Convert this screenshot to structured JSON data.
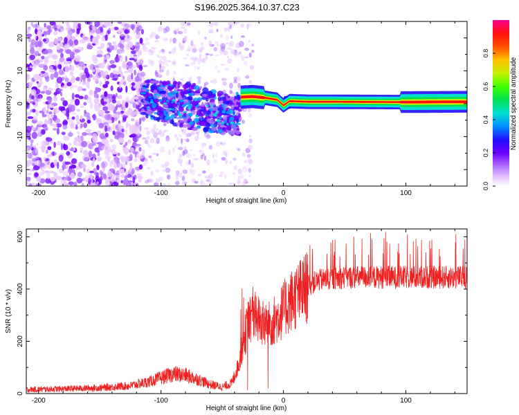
{
  "title": "S196.2025.364.10.37.C23",
  "colors": {
    "axis": "#000000",
    "snr_line": "#f02020",
    "colormap": [
      "#ffffff",
      "#e8c8ff",
      "#b070ff",
      "#7000ff",
      "#2010ff",
      "#00a0ff",
      "#00e0d0",
      "#00e050",
      "#60ff00",
      "#e0f000",
      "#ff9000",
      "#ff1010",
      "#ff00a0"
    ]
  },
  "chart_data": [
    {
      "type": "heatmap",
      "name": "spectrogram",
      "xlabel": "Height of straight line (km)",
      "ylabel": "Frequency (Hz)",
      "xlim": [
        -210,
        150
      ],
      "ylim": [
        -25,
        25
      ],
      "x_ticks": [
        -200,
        -100,
        0,
        100
      ],
      "x_tick_labels": [
        "-200",
        "-100",
        "0",
        "100"
      ],
      "y_ticks": [
        -20,
        -10,
        0,
        10,
        20
      ],
      "y_tick_labels": [
        "-20",
        "-10",
        "0",
        "10",
        "20"
      ],
      "colorbar": {
        "label": "Normalized spectral amplitude",
        "range": [
          0,
          1
        ],
        "ticks": [
          0.0,
          0.2,
          0.4,
          0.6,
          0.8
        ],
        "tick_labels": [
          "0.0",
          "0.2",
          "0.4",
          "0.6",
          "0.8"
        ]
      },
      "ridge": {
        "description": "narrow-band line",
        "points": [
          [
            -35,
            2
          ],
          [
            -25,
            2.2
          ],
          [
            -15,
            1.8
          ],
          [
            -5,
            1.2
          ],
          [
            0,
            -0.5
          ],
          [
            5,
            0.8
          ],
          [
            20,
            0.6
          ],
          [
            40,
            0.6
          ],
          [
            100,
            0.5
          ],
          [
            150,
            0.6
          ]
        ]
      }
    },
    {
      "type": "line",
      "name": "snr",
      "xlabel": "Height of straight line (km)",
      "ylabel": "SNR (10 * v/v)",
      "xlim": [
        -210,
        150
      ],
      "ylim": [
        0,
        630
      ],
      "x_ticks": [
        -200,
        -100,
        0,
        100
      ],
      "x_tick_labels": [
        "-200",
        "-100",
        "0",
        "100"
      ],
      "y_ticks": [
        0,
        200,
        400,
        600
      ],
      "y_tick_labels": [
        "0",
        "200",
        "400",
        "600"
      ],
      "series": [
        {
          "name": "SNR",
          "x": [
            -210,
            -180,
            -150,
            -125,
            -110,
            -100,
            -90,
            -80,
            -70,
            -60,
            -50,
            -42,
            -36,
            -30,
            -25,
            -20,
            -15,
            -10,
            -5,
            0,
            5,
            10,
            15,
            20,
            25,
            30,
            40,
            50,
            60,
            80,
            100,
            120,
            150
          ],
          "values": [
            15,
            18,
            22,
            30,
            45,
            60,
            75,
            70,
            55,
            35,
            25,
            40,
            120,
            250,
            310,
            280,
            260,
            270,
            290,
            320,
            350,
            370,
            390,
            410,
            425,
            435,
            440,
            445,
            445,
            445,
            445,
            445,
            445
          ]
        }
      ]
    }
  ]
}
